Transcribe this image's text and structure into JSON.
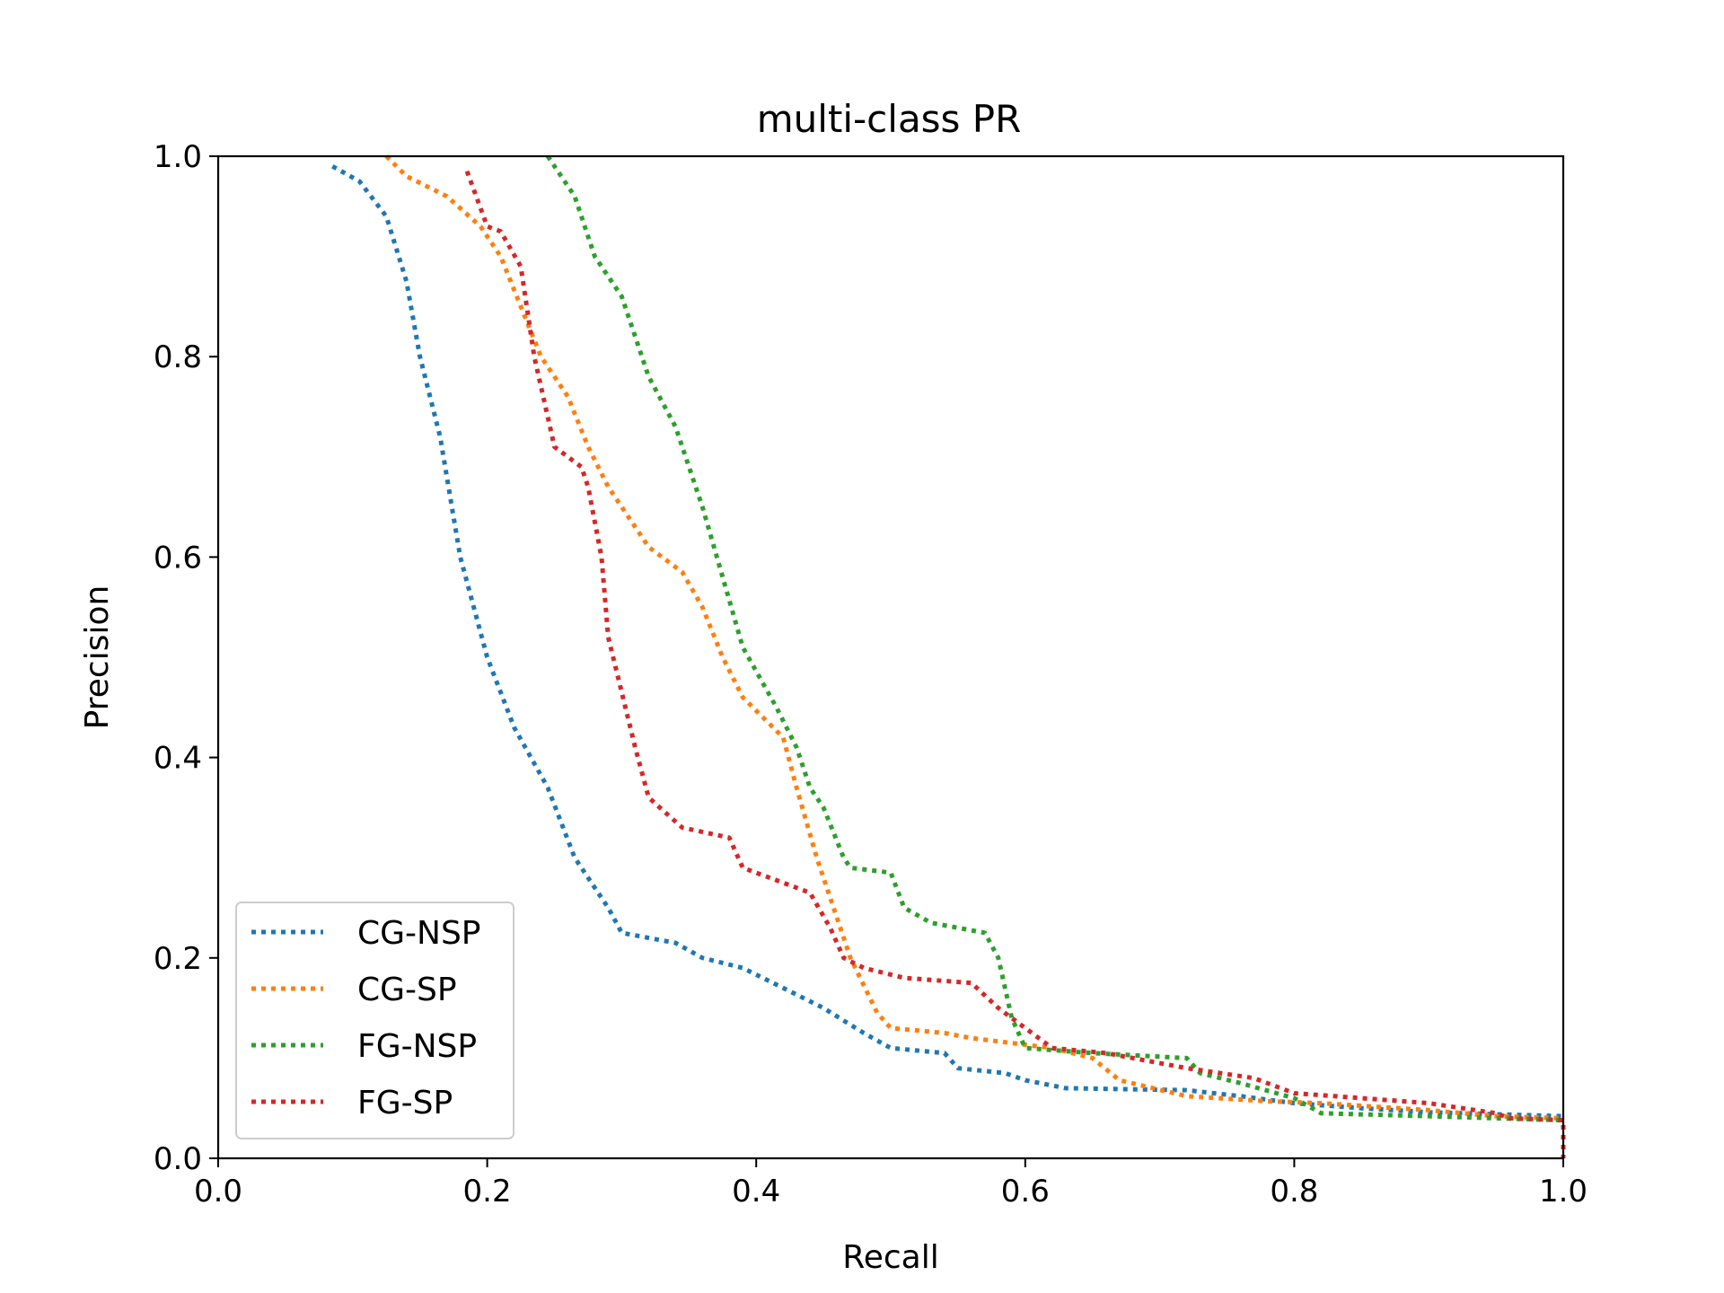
{
  "chart_data": {
    "type": "line",
    "title": "multi-class PR",
    "xlabel": "Recall",
    "ylabel": "Precision",
    "xlim": [
      0.0,
      1.0
    ],
    "ylim": [
      0.0,
      1.0
    ],
    "xticks": [
      "0.0",
      "0.2",
      "0.4",
      "0.6",
      "0.8",
      "1.0"
    ],
    "yticks": [
      "0.0",
      "0.2",
      "0.4",
      "0.6",
      "0.8",
      "1.0"
    ],
    "grid": false,
    "legend_position": "lower-left",
    "line_style": "dotted",
    "series": [
      {
        "name": "CG-NSP",
        "color": "#1f77b4",
        "points": [
          [
            0.085,
            0.99
          ],
          [
            0.105,
            0.975
          ],
          [
            0.125,
            0.94
          ],
          [
            0.14,
            0.875
          ],
          [
            0.15,
            0.8
          ],
          [
            0.165,
            0.72
          ],
          [
            0.18,
            0.6
          ],
          [
            0.2,
            0.5
          ],
          [
            0.22,
            0.43
          ],
          [
            0.245,
            0.37
          ],
          [
            0.265,
            0.3
          ],
          [
            0.29,
            0.25
          ],
          [
            0.3,
            0.225
          ],
          [
            0.34,
            0.215
          ],
          [
            0.36,
            0.2
          ],
          [
            0.39,
            0.19
          ],
          [
            0.42,
            0.17
          ],
          [
            0.45,
            0.15
          ],
          [
            0.48,
            0.125
          ],
          [
            0.5,
            0.11
          ],
          [
            0.54,
            0.105
          ],
          [
            0.55,
            0.09
          ],
          [
            0.585,
            0.085
          ],
          [
            0.6,
            0.078
          ],
          [
            0.63,
            0.07
          ],
          [
            0.72,
            0.068
          ],
          [
            0.76,
            0.062
          ],
          [
            0.8,
            0.055
          ],
          [
            0.85,
            0.05
          ],
          [
            0.9,
            0.046
          ],
          [
            0.95,
            0.044
          ],
          [
            1.0,
            0.042
          ]
        ]
      },
      {
        "name": "CG-SP",
        "color": "#ff7f0e",
        "points": [
          [
            0.125,
            1.0
          ],
          [
            0.14,
            0.98
          ],
          [
            0.17,
            0.96
          ],
          [
            0.195,
            0.93
          ],
          [
            0.21,
            0.9
          ],
          [
            0.225,
            0.85
          ],
          [
            0.24,
            0.8
          ],
          [
            0.26,
            0.76
          ],
          [
            0.275,
            0.71
          ],
          [
            0.29,
            0.67
          ],
          [
            0.3,
            0.65
          ],
          [
            0.32,
            0.61
          ],
          [
            0.345,
            0.585
          ],
          [
            0.36,
            0.55
          ],
          [
            0.375,
            0.5
          ],
          [
            0.39,
            0.46
          ],
          [
            0.42,
            0.42
          ],
          [
            0.43,
            0.37
          ],
          [
            0.445,
            0.3
          ],
          [
            0.46,
            0.24
          ],
          [
            0.47,
            0.2
          ],
          [
            0.49,
            0.145
          ],
          [
            0.5,
            0.13
          ],
          [
            0.54,
            0.125
          ],
          [
            0.56,
            0.12
          ],
          [
            0.62,
            0.11
          ],
          [
            0.65,
            0.1
          ],
          [
            0.67,
            0.078
          ],
          [
            0.72,
            0.062
          ],
          [
            0.78,
            0.057
          ],
          [
            0.82,
            0.055
          ],
          [
            0.9,
            0.048
          ],
          [
            0.95,
            0.042
          ],
          [
            1.0,
            0.04
          ]
        ]
      },
      {
        "name": "FG-NSP",
        "color": "#2ca02c",
        "points": [
          [
            0.245,
            1.0
          ],
          [
            0.265,
            0.96
          ],
          [
            0.28,
            0.9
          ],
          [
            0.3,
            0.86
          ],
          [
            0.32,
            0.78
          ],
          [
            0.34,
            0.73
          ],
          [
            0.36,
            0.65
          ],
          [
            0.375,
            0.58
          ],
          [
            0.39,
            0.51
          ],
          [
            0.415,
            0.45
          ],
          [
            0.43,
            0.41
          ],
          [
            0.44,
            0.37
          ],
          [
            0.45,
            0.35
          ],
          [
            0.465,
            0.3
          ],
          [
            0.47,
            0.29
          ],
          [
            0.5,
            0.285
          ],
          [
            0.51,
            0.25
          ],
          [
            0.53,
            0.235
          ],
          [
            0.57,
            0.225
          ],
          [
            0.58,
            0.2
          ],
          [
            0.59,
            0.14
          ],
          [
            0.6,
            0.11
          ],
          [
            0.65,
            0.105
          ],
          [
            0.72,
            0.1
          ],
          [
            0.73,
            0.085
          ],
          [
            0.76,
            0.075
          ],
          [
            0.8,
            0.06
          ],
          [
            0.82,
            0.045
          ],
          [
            0.9,
            0.042
          ],
          [
            0.95,
            0.04
          ],
          [
            1.0,
            0.038
          ]
        ]
      },
      {
        "name": "FG-SP",
        "color": "#d62728",
        "points": [
          [
            0.185,
            0.985
          ],
          [
            0.2,
            0.93
          ],
          [
            0.21,
            0.925
          ],
          [
            0.225,
            0.89
          ],
          [
            0.235,
            0.8
          ],
          [
            0.25,
            0.71
          ],
          [
            0.27,
            0.69
          ],
          [
            0.275,
            0.67
          ],
          [
            0.285,
            0.6
          ],
          [
            0.29,
            0.52
          ],
          [
            0.31,
            0.41
          ],
          [
            0.32,
            0.36
          ],
          [
            0.345,
            0.33
          ],
          [
            0.38,
            0.32
          ],
          [
            0.39,
            0.29
          ],
          [
            0.42,
            0.275
          ],
          [
            0.44,
            0.265
          ],
          [
            0.455,
            0.23
          ],
          [
            0.465,
            0.2
          ],
          [
            0.48,
            0.19
          ],
          [
            0.51,
            0.18
          ],
          [
            0.56,
            0.175
          ],
          [
            0.58,
            0.15
          ],
          [
            0.6,
            0.13
          ],
          [
            0.62,
            0.11
          ],
          [
            0.66,
            0.105
          ],
          [
            0.72,
            0.09
          ],
          [
            0.77,
            0.08
          ],
          [
            0.8,
            0.065
          ],
          [
            0.85,
            0.06
          ],
          [
            0.9,
            0.055
          ],
          [
            0.95,
            0.045
          ],
          [
            0.96,
            0.04
          ],
          [
            1.0,
            0.038
          ],
          [
            1.0,
            0.0
          ]
        ]
      }
    ]
  }
}
